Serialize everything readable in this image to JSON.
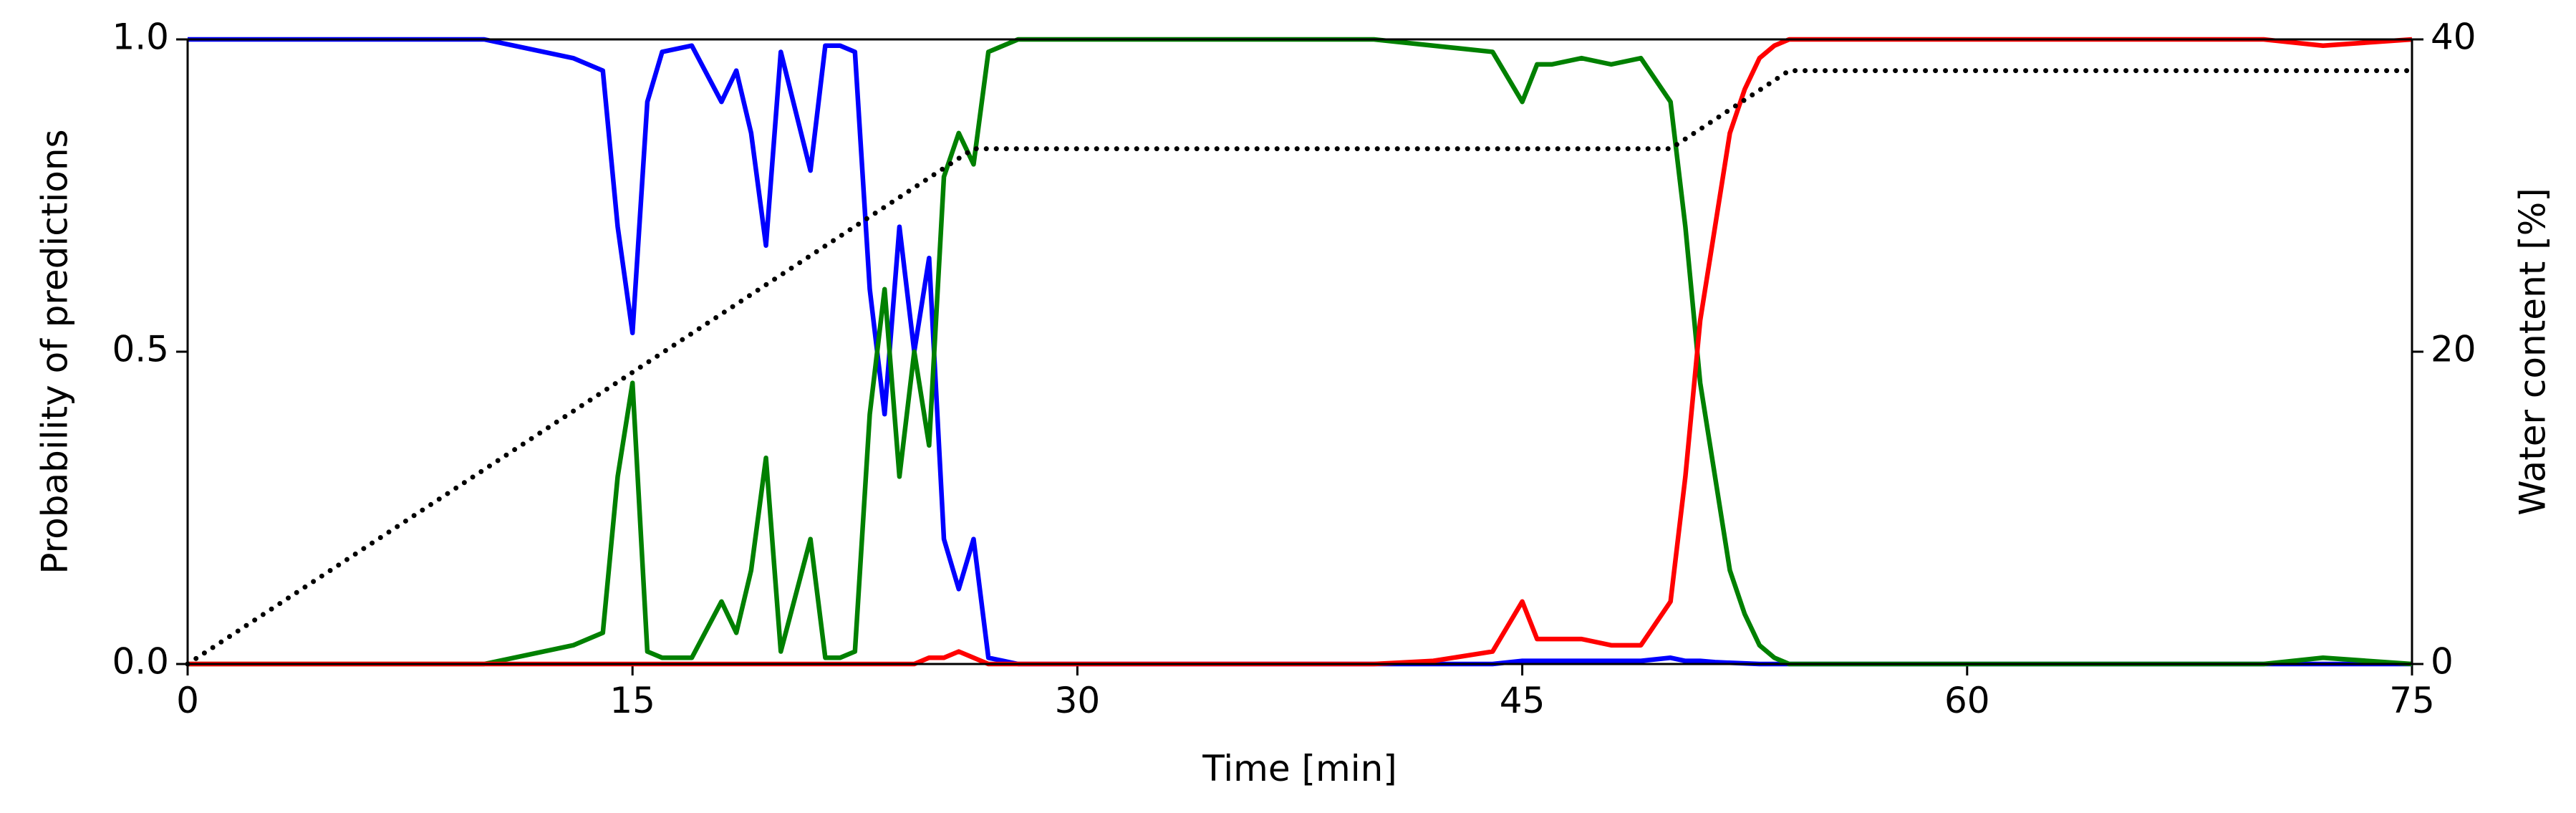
{
  "chart_data": {
    "type": "line",
    "xlabel": "Time [min]",
    "ylabel": "Probability of predictions",
    "y2label": "Water content [%]",
    "x": [
      0,
      5,
      10,
      11,
      12,
      13,
      14,
      14.5,
      15,
      15.5,
      16,
      17,
      18,
      18.5,
      19,
      19.5,
      20,
      21,
      21.5,
      22,
      22.5,
      23,
      23.5,
      24,
      24.5,
      25,
      25.5,
      26,
      26.5,
      27,
      28,
      30,
      35,
      40,
      42,
      44,
      45,
      45.5,
      46,
      47,
      48,
      49,
      50,
      50.5,
      51,
      51.5,
      52,
      52.5,
      53,
      53.5,
      54,
      55,
      57,
      60,
      65,
      70,
      72,
      75
    ],
    "series": [
      {
        "color": "#0000ff",
        "values": [
          1,
          1,
          1,
          0.99,
          0.98,
          0.97,
          0.95,
          0.7,
          0.53,
          0.9,
          0.98,
          0.99,
          0.9,
          0.95,
          0.85,
          0.67,
          0.98,
          0.79,
          0.99,
          0.99,
          0.98,
          0.6,
          0.4,
          0.7,
          0.5,
          0.65,
          0.2,
          0.12,
          0.2,
          0.01,
          0,
          0,
          0,
          0,
          0,
          0,
          0.005,
          0.005,
          0.005,
          0.005,
          0.005,
          0.005,
          0.01,
          0.005,
          0.005,
          0.003,
          0.002,
          0.001,
          0,
          0,
          0,
          0,
          0,
          0,
          0,
          0,
          0,
          0
        ]
      },
      {
        "color": "#008000",
        "values": [
          0,
          0,
          0,
          0.01,
          0.02,
          0.03,
          0.05,
          0.3,
          0.45,
          0.02,
          0.01,
          0.01,
          0.1,
          0.05,
          0.15,
          0.33,
          0.02,
          0.2,
          0.01,
          0.01,
          0.02,
          0.4,
          0.6,
          0.3,
          0.5,
          0.35,
          0.78,
          0.85,
          0.8,
          0.98,
          1,
          1,
          1,
          1,
          0.99,
          0.98,
          0.9,
          0.96,
          0.96,
          0.97,
          0.96,
          0.97,
          0.9,
          0.7,
          0.45,
          0.3,
          0.15,
          0.08,
          0.03,
          0.01,
          0,
          0,
          0,
          0,
          0,
          0,
          0.01,
          0
        ]
      },
      {
        "color": "#ff0000",
        "values": [
          0,
          0,
          0,
          0,
          0,
          0,
          0,
          0,
          0,
          0,
          0,
          0,
          0,
          0,
          0,
          0,
          0,
          0,
          0,
          0,
          0,
          0,
          0,
          0,
          0,
          0.01,
          0.01,
          0.02,
          0.01,
          0,
          0,
          0,
          0,
          0,
          0.005,
          0.02,
          0.1,
          0.04,
          0.04,
          0.04,
          0.03,
          0.03,
          0.1,
          0.3,
          0.55,
          0.7,
          0.85,
          0.92,
          0.97,
          0.99,
          1,
          1,
          1,
          1,
          1,
          1,
          0.99,
          1
        ]
      },
      {
        "color": "#000000",
        "axis": "y2",
        "dash": "dotted",
        "x": [
          0,
          26.5,
          50,
          54,
          75
        ],
        "values": [
          0,
          33,
          33,
          38,
          38
        ]
      }
    ],
    "xlim": [
      0,
      75
    ],
    "xticks": [
      0,
      15,
      30,
      45,
      60,
      75
    ],
    "ylim": [
      0,
      1
    ],
    "yticks": [
      {
        "value": 0,
        "label": "0.0"
      },
      0.5,
      {
        "value": 1,
        "label": "1.0"
      }
    ],
    "y2lim": [
      0,
      40
    ],
    "y2ticks": [
      0,
      20,
      40
    ],
    "grid": false
  }
}
